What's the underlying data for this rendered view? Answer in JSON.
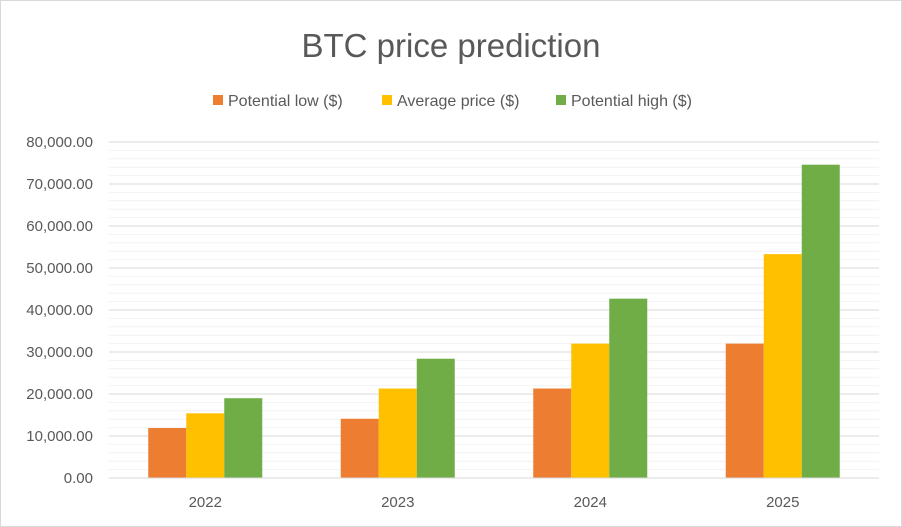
{
  "chart_data": {
    "type": "bar",
    "title": "BTC price prediction",
    "categories": [
      "2022",
      "2023",
      "2024",
      "2025"
    ],
    "series": [
      {
        "name": "Potential low ($)",
        "color": "#ED7D31",
        "values": [
          11900,
          14100,
          21300,
          32000
        ]
      },
      {
        "name": "Average price ($)",
        "color": "#FFC000",
        "values": [
          15400,
          21300,
          32000,
          53300
        ]
      },
      {
        "name": "Potential high ($)",
        "color": "#70AD47",
        "values": [
          19000,
          28400,
          42700,
          74600
        ]
      }
    ],
    "ylim": [
      0,
      80000
    ],
    "yticks": [
      "0.00",
      "10,000.00",
      "20,000.00",
      "30,000.00",
      "40,000.00",
      "50,000.00",
      "60,000.00",
      "70,000.00",
      "80,000.00"
    ],
    "gridlines": "major and minor horizontal",
    "legend_position": "top"
  }
}
